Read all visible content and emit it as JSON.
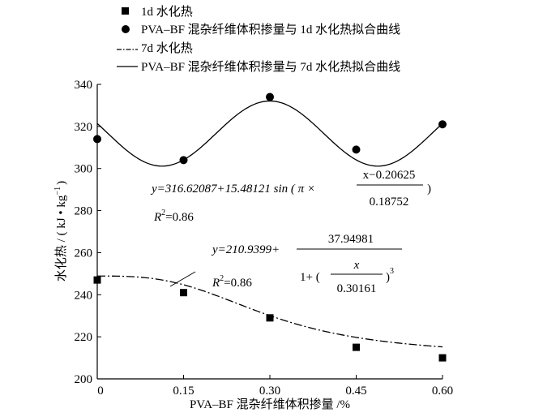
{
  "chart_data": {
    "type": "scatter",
    "title": "",
    "xlabel": "PVA–BF 混杂纤维体积掺量 /%",
    "ylabel": "水化热 / ( kJ • kg",
    "ylabel_sup": "−1",
    "ylabel_tail": ")",
    "xlim": [
      0,
      0.6
    ],
    "ylim": [
      200,
      340
    ],
    "x_ticks": [
      0,
      0.15,
      0.3,
      0.45,
      0.6
    ],
    "x_tick_labels": [
      "0",
      "0.15",
      "0.30",
      "0.45",
      "0.60"
    ],
    "y_ticks": [
      200,
      220,
      240,
      260,
      280,
      300,
      320,
      340
    ],
    "y_tick_labels": [
      "200",
      "220",
      "240",
      "260",
      "280",
      "300",
      "320",
      "340"
    ],
    "legend_position": "top",
    "series": [
      {
        "name": "1d 水化热",
        "kind": "points",
        "marker": "square",
        "x": [
          0,
          0.15,
          0.3,
          0.45,
          0.6
        ],
        "y": [
          247,
          241,
          229,
          215,
          210
        ]
      },
      {
        "name": "PVA–BF 混杂纤维体积掺量与 1d 水化热拟合曲线",
        "kind": "points",
        "marker": "circle",
        "x": [
          0,
          0.15,
          0.3,
          0.45,
          0.6
        ],
        "y": [
          314,
          304,
          334,
          309,
          321
        ]
      },
      {
        "name": "7d 水化热",
        "kind": "fit",
        "line": "dashdot",
        "model": "logistic",
        "params": {
          "a": 210.9399,
          "b": 37.94981,
          "c": 0.30161,
          "p": 3
        }
      },
      {
        "name": "PVA–BF 混杂纤维体积掺量与 7d 水化热拟合曲线",
        "kind": "fit",
        "line": "solid",
        "model": "sine",
        "params": {
          "a": 316.62087,
          "b": 15.48121,
          "c": 0.20625,
          "d": 0.18752
        }
      }
    ],
    "annotations": {
      "sine": {
        "prefix": "y=316.62087+15.48121 sin ( π ×",
        "numerator": "x−0.20625",
        "denominator": "0.18752",
        "close": ")",
        "r2_label": "R",
        "r2_sup": "2",
        "r2_value": "=0.86"
      },
      "logistic": {
        "prefix": "y=210.9399+",
        "numerator": "37.94981",
        "denom_prefix": "1+ (",
        "inner_numerator": "x",
        "inner_denominator": "0.30161",
        "denom_close": ")",
        "power": "3",
        "r2_label": "R",
        "r2_sup": "2",
        "r2_value": "=0.86"
      }
    }
  }
}
